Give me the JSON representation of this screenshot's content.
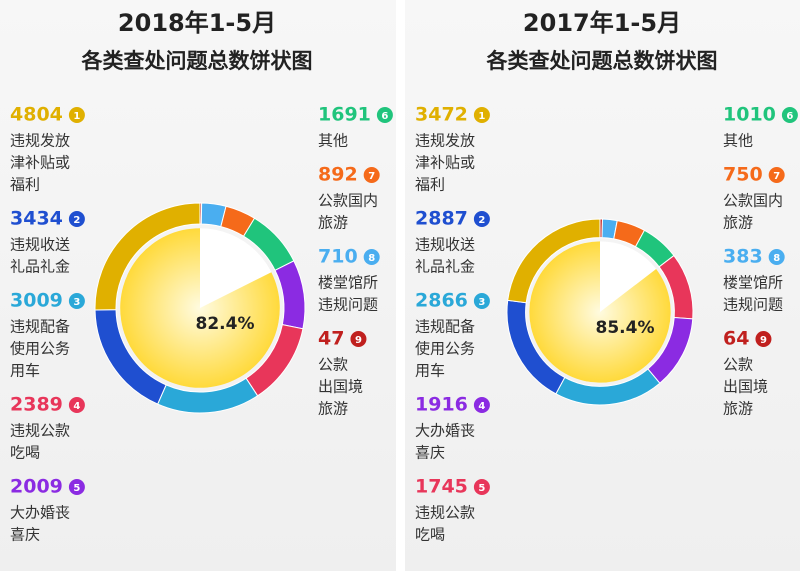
{
  "chart_data": [
    {
      "type": "pie",
      "title": "2018年1-5月",
      "subtitle": "各类查处问题总数饼状图",
      "categories": [
        [
          "违规发放",
          "津补贴或",
          "福利"
        ],
        [
          "违规收送",
          "礼品礼金"
        ],
        [
          "违规配备",
          "使用公务",
          "用车"
        ],
        [
          "违规公款",
          "吃喝"
        ],
        [
          "大办婚丧",
          "喜庆"
        ],
        [
          "其他"
        ],
        [
          "公款国内",
          "旅游"
        ],
        [
          "楼堂馆所",
          "违规问题"
        ],
        [
          "公款",
          "出国境",
          "旅游"
        ]
      ],
      "values": [
        4804,
        3434,
        3009,
        2389,
        2009,
        1691,
        892,
        710,
        47
      ],
      "ranks": [
        1,
        2,
        3,
        4,
        5,
        6,
        7,
        8,
        9
      ],
      "colors": [
        "#e0b000",
        "#1f4fd0",
        "#2aa8d8",
        "#e8365a",
        "#8b2be2",
        "#20c47c",
        "#f56a1a",
        "#4aaef0",
        "#c0201e"
      ],
      "inner_value": 82.4,
      "inner_label": "82.4%"
    },
    {
      "type": "pie",
      "title": "2017年1-5月",
      "subtitle": "各类查处问题总数饼状图",
      "categories": [
        [
          "违规发放",
          "津补贴或",
          "福利"
        ],
        [
          "违规收送",
          "礼品礼金"
        ],
        [
          "违规配备",
          "使用公务",
          "用车"
        ],
        [
          "大办婚丧",
          "喜庆"
        ],
        [
          "违规公款",
          "吃喝"
        ],
        [
          "其他"
        ],
        [
          "公款国内",
          "旅游"
        ],
        [
          "楼堂馆所",
          "违规问题"
        ],
        [
          "公款",
          "出国境",
          "旅游"
        ]
      ],
      "values": [
        3472,
        2887,
        2866,
        1916,
        1745,
        1010,
        750,
        383,
        64
      ],
      "ranks": [
        1,
        2,
        3,
        4,
        5,
        6,
        7,
        8,
        9
      ],
      "colors": [
        "#e0b000",
        "#1f4fd0",
        "#2aa8d8",
        "#8b2be2",
        "#e8365a",
        "#20c47c",
        "#f56a1a",
        "#4aaef0",
        "#c0201e"
      ],
      "inner_value": 85.4,
      "inner_label": "85.4%"
    }
  ]
}
